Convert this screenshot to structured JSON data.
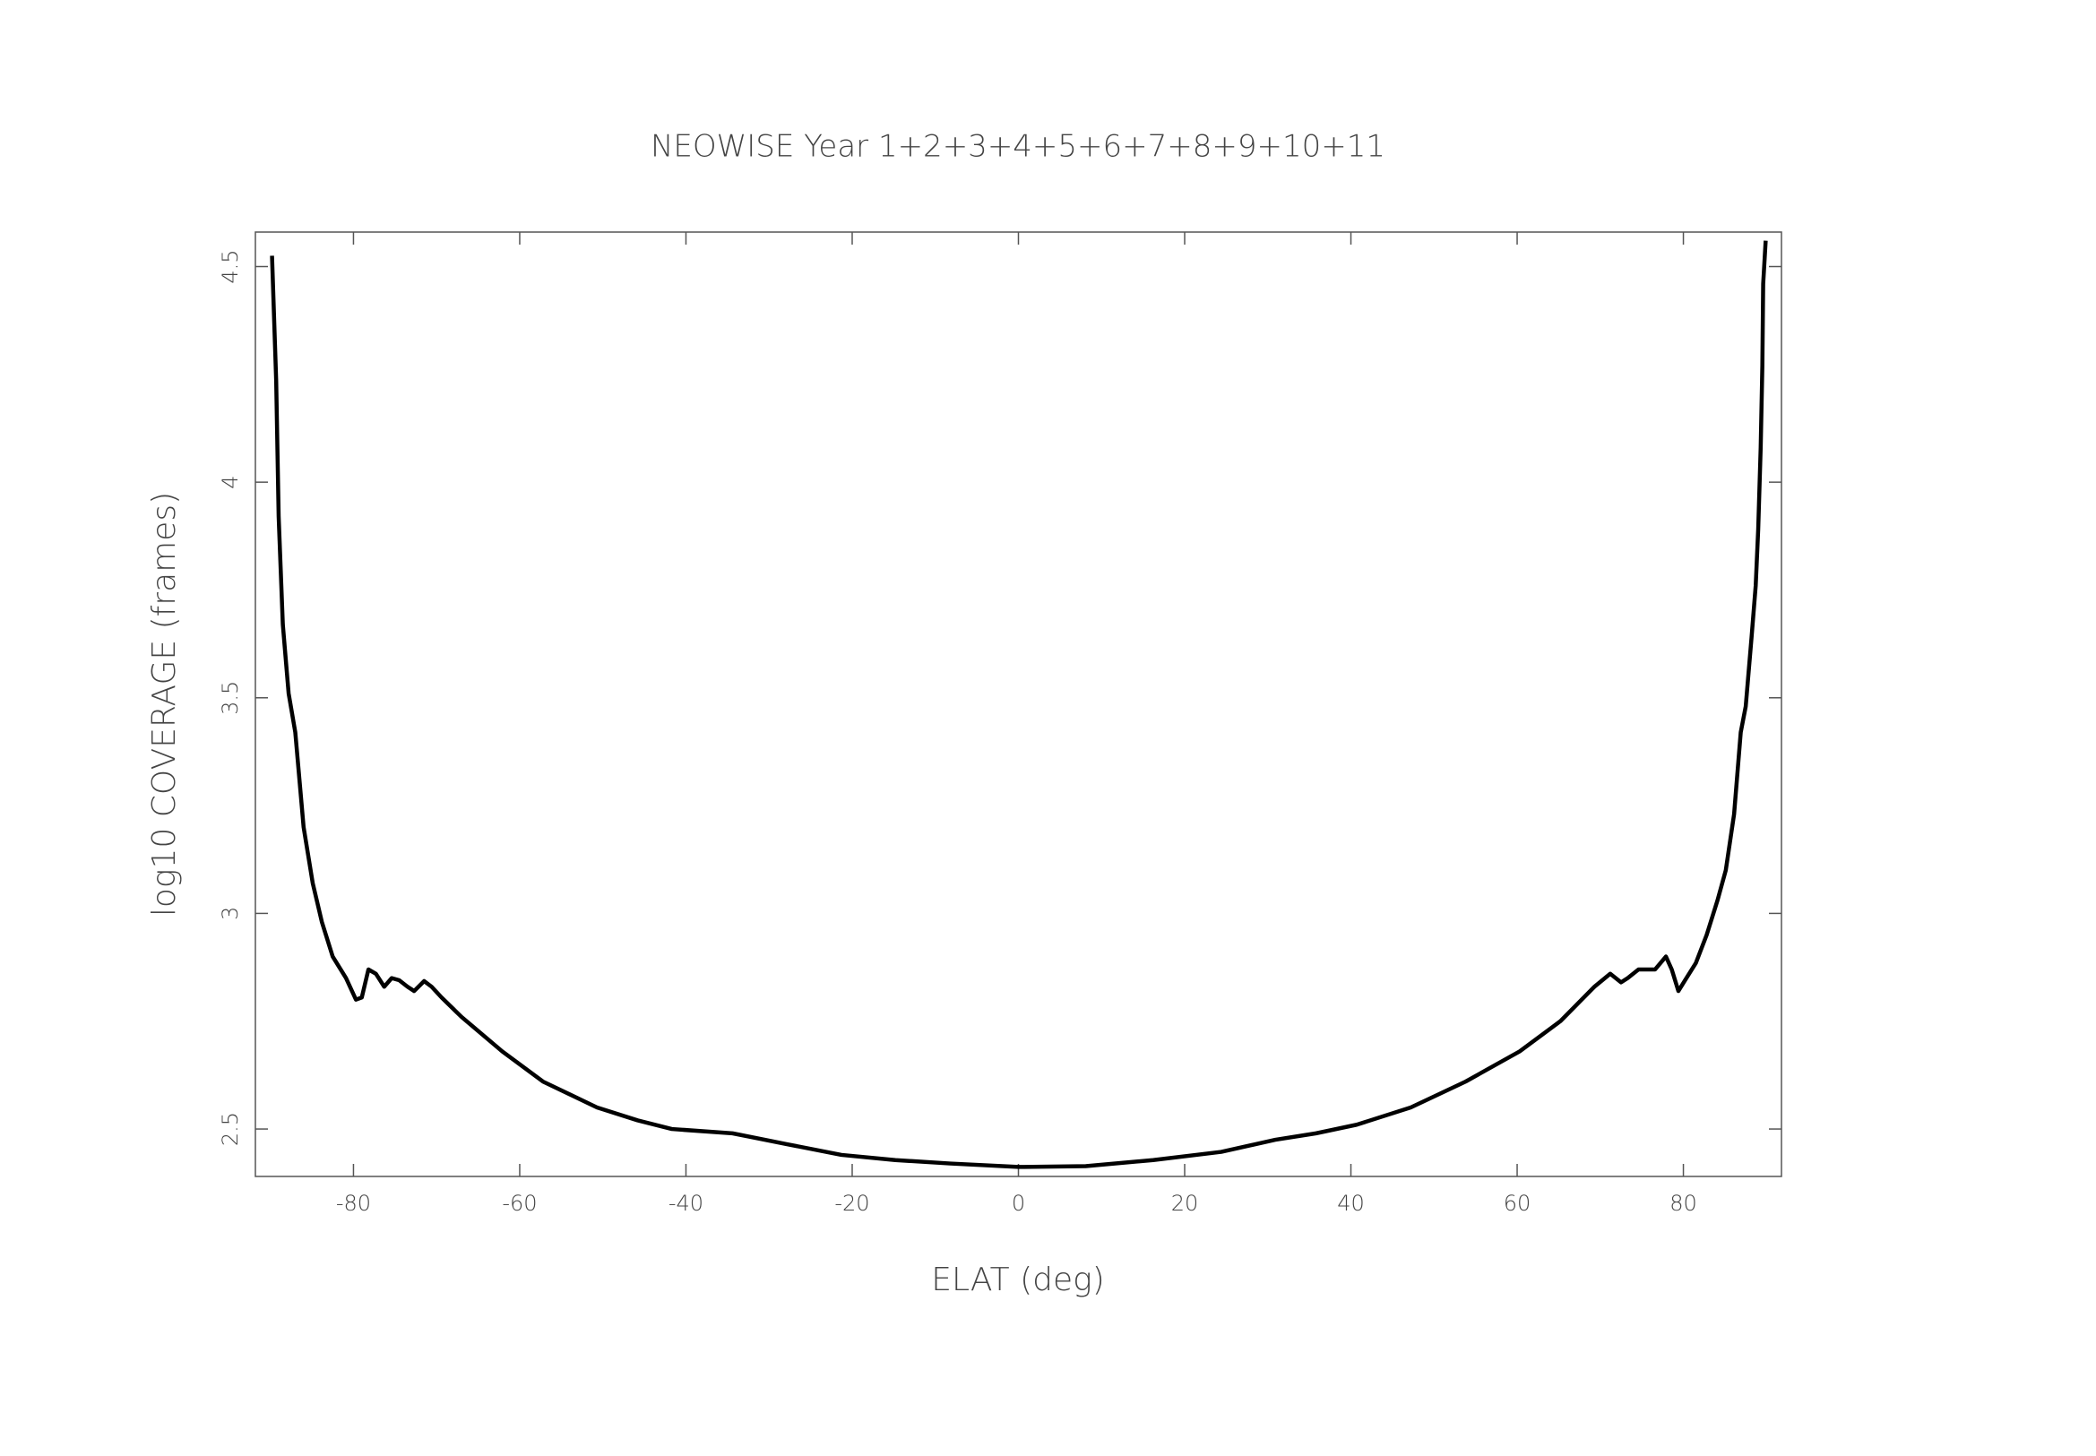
{
  "chart_data": {
    "type": "line",
    "title": "NEOWISE Year 1+2+3+4+5+6+7+8+9+10+11",
    "xlabel": "ELAT (deg)",
    "ylabel": "log10 COVERAGE (frames)",
    "xlim": [
      -91.8,
      91.8
    ],
    "ylim": [
      2.39,
      4.58
    ],
    "xticks": [
      -80,
      -60,
      -40,
      -20,
      0,
      20,
      40,
      60,
      80
    ],
    "yticks": [
      2.5,
      3,
      3.5,
      4,
      4.5
    ],
    "x": [
      -89.8,
      -89.3,
      -89.0,
      -88.5,
      -87.8,
      -87.0,
      -86.0,
      -84.9,
      -83.8,
      -82.5,
      -80.9,
      -79.7,
      -79.0,
      -78.2,
      -77.3,
      -76.3,
      -75.4,
      -74.5,
      -73.5,
      -72.7,
      -71.5,
      -70.6,
      -69.4,
      -67.0,
      -62.1,
      -57.2,
      -50.7,
      -45.8,
      -41.7,
      -34.4,
      -27.9,
      -21.3,
      -14.8,
      -8.2,
      0,
      8.1,
      16.2,
      24.4,
      30.9,
      35.8,
      40.7,
      47.2,
      53.8,
      60.3,
      65.2,
      69.3,
      71.2,
      72.5,
      73.3,
      74.6,
      75.8,
      76.6,
      77.9,
      78.6,
      79.4,
      80.2,
      81.5,
      82.8,
      84.1,
      85.1,
      86.1,
      86.9,
      87.5,
      88.2,
      88.7,
      89.0,
      89.3,
      89.5,
      89.6,
      89.9
    ],
    "series": [
      {
        "color": "#000000",
        "values": [
          4.525,
          4.236,
          3.92,
          3.67,
          3.51,
          3.42,
          3.2,
          3.07,
          2.98,
          2.9,
          2.85,
          2.8,
          2.805,
          2.87,
          2.86,
          2.83,
          2.85,
          2.845,
          2.83,
          2.82,
          2.843,
          2.83,
          2.805,
          2.76,
          2.68,
          2.61,
          2.55,
          2.52,
          2.5,
          2.49,
          2.465,
          2.44,
          2.428,
          2.42,
          2.412,
          2.414,
          2.428,
          2.447,
          2.475,
          2.49,
          2.51,
          2.55,
          2.61,
          2.68,
          2.75,
          2.83,
          2.86,
          2.84,
          2.85,
          2.87,
          2.87,
          2.87,
          2.9,
          2.87,
          2.82,
          2.845,
          2.885,
          2.95,
          3.03,
          3.1,
          3.23,
          3.42,
          3.48,
          3.64,
          3.76,
          3.89,
          4.08,
          4.27,
          4.46,
          4.56
        ]
      }
    ]
  }
}
